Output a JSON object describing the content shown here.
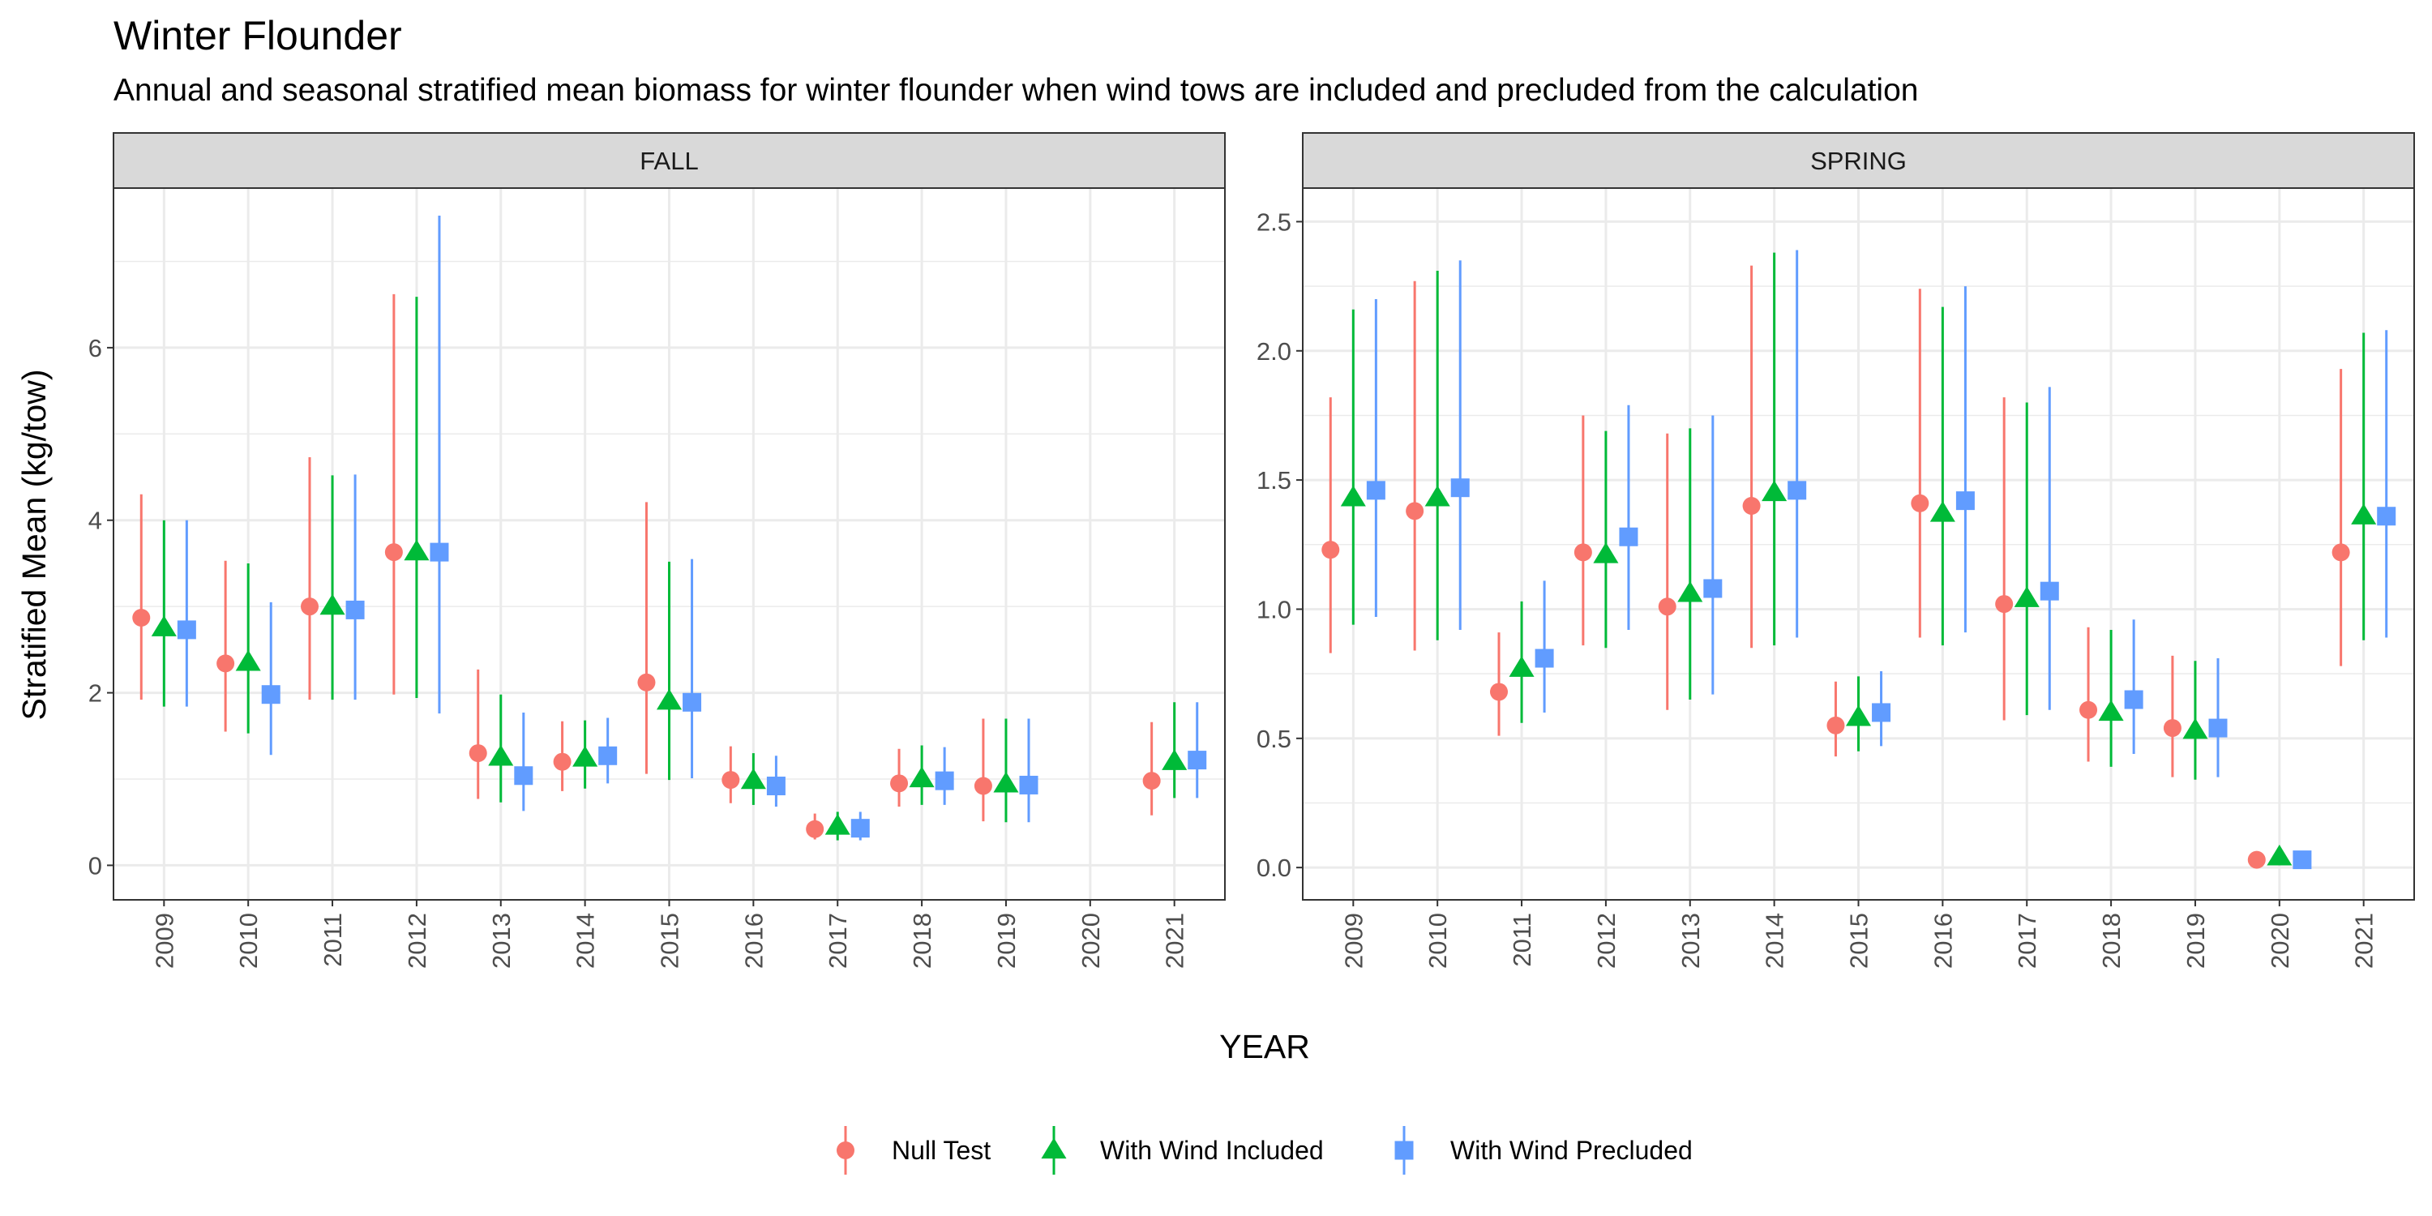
{
  "title": "Winter Flounder",
  "subtitle": "Annual and seasonal stratified mean biomass for winter flounder when wind tows are included and precluded from the calculation",
  "colors": {
    "null_test": "#F8766D",
    "with_wind_included": "#00BA38",
    "with_wind_precluded": "#619CFF",
    "strip_fill": "#d9d9d9",
    "grid": "#ebebeb",
    "panel_border": "#333333"
  },
  "legend": {
    "items": [
      {
        "label": "Null Test",
        "shape": "circle",
        "color": "#F8766D"
      },
      {
        "label": "With Wind Included",
        "shape": "triangle",
        "color": "#00BA38"
      },
      {
        "label": "With Wind Precluded",
        "shape": "square",
        "color": "#619CFF"
      }
    ]
  },
  "chart_data": {
    "type": "scatter",
    "title": "Winter Flounder",
    "subtitle": "Annual and seasonal stratified mean biomass for winter flounder when wind tows are included and precluded from the calculation",
    "xlabel": "YEAR",
    "ylabel": "Stratified Mean (kg/tow)",
    "categories": [
      "2009",
      "2010",
      "2011",
      "2012",
      "2013",
      "2014",
      "2015",
      "2016",
      "2017",
      "2018",
      "2019",
      "2020",
      "2021"
    ],
    "grid": true,
    "legend_position": "bottom",
    "series_names": [
      "Null Test",
      "With Wind Included",
      "With Wind Precluded"
    ],
    "panels": [
      {
        "strip_label": "FALL",
        "ylim": [
          -0.4,
          7.85
        ],
        "yticks": [
          0,
          2,
          4,
          6
        ],
        "series": [
          {
            "name": "Null Test",
            "points": [
              {
                "x": "2009",
                "y": 2.87,
                "lo": 1.92,
                "hi": 4.3
              },
              {
                "x": "2010",
                "y": 2.34,
                "lo": 1.55,
                "hi": 3.53
              },
              {
                "x": "2011",
                "y": 3.0,
                "lo": 1.92,
                "hi": 4.73
              },
              {
                "x": "2012",
                "y": 3.63,
                "lo": 1.98,
                "hi": 6.62
              },
              {
                "x": "2013",
                "y": 1.3,
                "lo": 0.77,
                "hi": 2.27
              },
              {
                "x": "2014",
                "y": 1.2,
                "lo": 0.86,
                "hi": 1.67
              },
              {
                "x": "2015",
                "y": 2.12,
                "lo": 1.06,
                "hi": 4.21
              },
              {
                "x": "2016",
                "y": 0.99,
                "lo": 0.72,
                "hi": 1.38
              },
              {
                "x": "2017",
                "y": 0.42,
                "lo": 0.3,
                "hi": 0.6
              },
              {
                "x": "2018",
                "y": 0.95,
                "lo": 0.68,
                "hi": 1.35
              },
              {
                "x": "2019",
                "y": 0.92,
                "lo": 0.51,
                "hi": 1.7
              },
              {
                "x": "2021",
                "y": 0.98,
                "lo": 0.58,
                "hi": 1.66
              }
            ]
          },
          {
            "name": "With Wind Included",
            "points": [
              {
                "x": "2009",
                "y": 2.75,
                "lo": 1.84,
                "hi": 4.0
              },
              {
                "x": "2010",
                "y": 2.35,
                "lo": 1.53,
                "hi": 3.5
              },
              {
                "x": "2011",
                "y": 3.0,
                "lo": 1.92,
                "hi": 4.52
              },
              {
                "x": "2012",
                "y": 3.63,
                "lo": 1.94,
                "hi": 6.59
              },
              {
                "x": "2013",
                "y": 1.25,
                "lo": 0.73,
                "hi": 1.98
              },
              {
                "x": "2014",
                "y": 1.24,
                "lo": 0.89,
                "hi": 1.68
              },
              {
                "x": "2015",
                "y": 1.9,
                "lo": 0.99,
                "hi": 3.52
              },
              {
                "x": "2016",
                "y": 0.98,
                "lo": 0.7,
                "hi": 1.3
              },
              {
                "x": "2017",
                "y": 0.45,
                "lo": 0.29,
                "hi": 0.62
              },
              {
                "x": "2018",
                "y": 1.0,
                "lo": 0.7,
                "hi": 1.39
              },
              {
                "x": "2019",
                "y": 0.94,
                "lo": 0.5,
                "hi": 1.7
              },
              {
                "x": "2021",
                "y": 1.2,
                "lo": 0.78,
                "hi": 1.89
              }
            ]
          },
          {
            "name": "With Wind Precluded",
            "points": [
              {
                "x": "2009",
                "y": 2.73,
                "lo": 1.84,
                "hi": 4.0
              },
              {
                "x": "2010",
                "y": 1.98,
                "lo": 1.28,
                "hi": 3.05
              },
              {
                "x": "2011",
                "y": 2.96,
                "lo": 1.92,
                "hi": 4.53
              },
              {
                "x": "2012",
                "y": 3.63,
                "lo": 1.76,
                "hi": 7.53
              },
              {
                "x": "2013",
                "y": 1.04,
                "lo": 0.63,
                "hi": 1.77
              },
              {
                "x": "2014",
                "y": 1.27,
                "lo": 0.95,
                "hi": 1.71
              },
              {
                "x": "2015",
                "y": 1.89,
                "lo": 1.01,
                "hi": 3.55
              },
              {
                "x": "2016",
                "y": 0.92,
                "lo": 0.68,
                "hi": 1.27
              },
              {
                "x": "2017",
                "y": 0.43,
                "lo": 0.29,
                "hi": 0.62
              },
              {
                "x": "2018",
                "y": 0.98,
                "lo": 0.7,
                "hi": 1.37
              },
              {
                "x": "2019",
                "y": 0.93,
                "lo": 0.5,
                "hi": 1.7
              },
              {
                "x": "2021",
                "y": 1.22,
                "lo": 0.78,
                "hi": 1.89
              }
            ]
          }
        ]
      },
      {
        "strip_label": "SPRING",
        "ylim": [
          -0.125,
          2.63
        ],
        "yticks": [
          0.0,
          0.5,
          1.0,
          1.5,
          2.0,
          2.5
        ],
        "ytick_labels": [
          "0.0",
          "0.5",
          "1.0",
          "1.5",
          "2.0",
          "2.5"
        ],
        "series": [
          {
            "name": "Null Test",
            "points": [
              {
                "x": "2009",
                "y": 1.23,
                "lo": 0.83,
                "hi": 1.82
              },
              {
                "x": "2010",
                "y": 1.38,
                "lo": 0.84,
                "hi": 2.27
              },
              {
                "x": "2011",
                "y": 0.68,
                "lo": 0.51,
                "hi": 0.91
              },
              {
                "x": "2012",
                "y": 1.22,
                "lo": 0.86,
                "hi": 1.75
              },
              {
                "x": "2013",
                "y": 1.01,
                "lo": 0.61,
                "hi": 1.68
              },
              {
                "x": "2014",
                "y": 1.4,
                "lo": 0.85,
                "hi": 2.33
              },
              {
                "x": "2015",
                "y": 0.55,
                "lo": 0.43,
                "hi": 0.72
              },
              {
                "x": "2016",
                "y": 1.41,
                "lo": 0.89,
                "hi": 2.24
              },
              {
                "x": "2017",
                "y": 1.02,
                "lo": 0.57,
                "hi": 1.82
              },
              {
                "x": "2018",
                "y": 0.61,
                "lo": 0.41,
                "hi": 0.93
              },
              {
                "x": "2019",
                "y": 0.54,
                "lo": 0.35,
                "hi": 0.82
              },
              {
                "x": "2020",
                "y": 0.03,
                "lo": 0.03,
                "hi": 0.03
              },
              {
                "x": "2021",
                "y": 1.22,
                "lo": 0.78,
                "hi": 1.93
              }
            ]
          },
          {
            "name": "With Wind Included",
            "points": [
              {
                "x": "2009",
                "y": 1.43,
                "lo": 0.94,
                "hi": 2.16
              },
              {
                "x": "2010",
                "y": 1.43,
                "lo": 0.88,
                "hi": 2.31
              },
              {
                "x": "2011",
                "y": 0.77,
                "lo": 0.56,
                "hi": 1.03
              },
              {
                "x": "2012",
                "y": 1.21,
                "lo": 0.85,
                "hi": 1.69
              },
              {
                "x": "2013",
                "y": 1.06,
                "lo": 0.65,
                "hi": 1.7
              },
              {
                "x": "2014",
                "y": 1.45,
                "lo": 0.86,
                "hi": 2.38
              },
              {
                "x": "2015",
                "y": 0.58,
                "lo": 0.45,
                "hi": 0.74
              },
              {
                "x": "2016",
                "y": 1.37,
                "lo": 0.86,
                "hi": 2.17
              },
              {
                "x": "2017",
                "y": 1.04,
                "lo": 0.59,
                "hi": 1.8
              },
              {
                "x": "2018",
                "y": 0.6,
                "lo": 0.39,
                "hi": 0.92
              },
              {
                "x": "2019",
                "y": 0.53,
                "lo": 0.34,
                "hi": 0.8
              },
              {
                "x": "2020",
                "y": 0.04,
                "lo": 0.04,
                "hi": 0.04
              },
              {
                "x": "2021",
                "y": 1.36,
                "lo": 0.88,
                "hi": 2.07
              }
            ]
          },
          {
            "name": "With Wind Precluded",
            "points": [
              {
                "x": "2009",
                "y": 1.46,
                "lo": 0.97,
                "hi": 2.2
              },
              {
                "x": "2010",
                "y": 1.47,
                "lo": 0.92,
                "hi": 2.35
              },
              {
                "x": "2011",
                "y": 0.81,
                "lo": 0.6,
                "hi": 1.11
              },
              {
                "x": "2012",
                "y": 1.28,
                "lo": 0.92,
                "hi": 1.79
              },
              {
                "x": "2013",
                "y": 1.08,
                "lo": 0.67,
                "hi": 1.75
              },
              {
                "x": "2014",
                "y": 1.46,
                "lo": 0.89,
                "hi": 2.39
              },
              {
                "x": "2015",
                "y": 0.6,
                "lo": 0.47,
                "hi": 0.76
              },
              {
                "x": "2016",
                "y": 1.42,
                "lo": 0.91,
                "hi": 2.25
              },
              {
                "x": "2017",
                "y": 1.07,
                "lo": 0.61,
                "hi": 1.86
              },
              {
                "x": "2018",
                "y": 0.65,
                "lo": 0.44,
                "hi": 0.96
              },
              {
                "x": "2019",
                "y": 0.54,
                "lo": 0.35,
                "hi": 0.81
              },
              {
                "x": "2020",
                "y": 0.03,
                "lo": 0.03,
                "hi": 0.03
              },
              {
                "x": "2021",
                "y": 1.36,
                "lo": 0.89,
                "hi": 2.08
              }
            ]
          }
        ]
      }
    ]
  }
}
